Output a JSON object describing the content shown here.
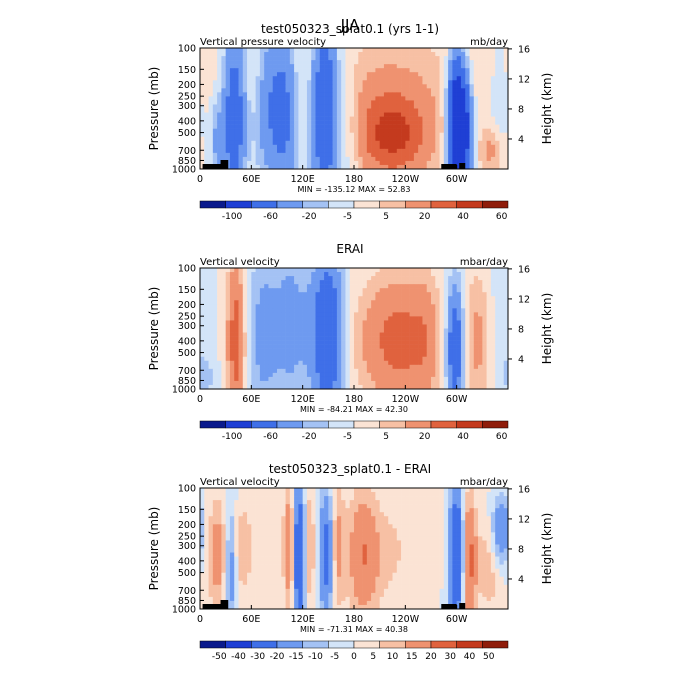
{
  "page_title": "JJA",
  "colors": {
    "palette_blue_red": [
      "#0a1a8c",
      "#1f3fd4",
      "#3f6fe8",
      "#6e9af0",
      "#a4c2f4",
      "#d3e4f8",
      "#fbe3d4",
      "#f7c0a4",
      "#ef9270",
      "#e0623e",
      "#c43a1e",
      "#8f1d0b"
    ],
    "topography": "#000000"
  },
  "chart_data": [
    {
      "type": "heatmap",
      "title": "test050323_splat0.1 (yrs 1-1)",
      "left_label": "Vertical pressure velocity",
      "right_label": "mb/day",
      "ylabel": "Pressure (mb)",
      "y2label": "Height (km)",
      "y_ticks": [
        "100",
        "150",
        "200",
        "250",
        "300",
        "400",
        "500",
        "700",
        "850",
        "1000"
      ],
      "y_tick_values": [
        100,
        150,
        200,
        250,
        300,
        400,
        500,
        700,
        850,
        1000
      ],
      "y2_ticks": [
        "16",
        "12",
        "8",
        "4"
      ],
      "y2_tick_values": [
        16,
        12,
        8,
        4
      ],
      "x_ticks": [
        "0",
        "60E",
        "120E",
        "180",
        "120W",
        "60W"
      ],
      "x_tick_values": [
        0,
        60,
        120,
        180,
        240,
        300
      ],
      "xlim": [
        0,
        360
      ],
      "ylim": [
        1000,
        100
      ],
      "min_max_text": "MIN = -135.12   MAX =  52.83",
      "colorbar_labels": [
        "-100",
        "-60",
        "-20",
        "-5",
        "5",
        "20",
        "40",
        "60"
      ],
      "topography": true
    },
    {
      "type": "heatmap",
      "title": "ERAI",
      "left_label": "Vertical velocity",
      "right_label": "mbar/day",
      "ylabel": "Pressure (mb)",
      "y2label": "Height (km)",
      "y_ticks": [
        "100",
        "150",
        "200",
        "250",
        "300",
        "400",
        "500",
        "700",
        "850",
        "1000"
      ],
      "y_tick_values": [
        100,
        150,
        200,
        250,
        300,
        400,
        500,
        700,
        850,
        1000
      ],
      "y2_ticks": [
        "16",
        "12",
        "8",
        "4"
      ],
      "y2_tick_values": [
        16,
        12,
        8,
        4
      ],
      "x_ticks": [
        "0",
        "60E",
        "120E",
        "180",
        "120W",
        "60W"
      ],
      "x_tick_values": [
        0,
        60,
        120,
        180,
        240,
        300
      ],
      "xlim": [
        0,
        360
      ],
      "ylim": [
        1000,
        100
      ],
      "min_max_text": "MIN = -84.21   MAX =  42.30",
      "colorbar_labels": [
        "-100",
        "-60",
        "-20",
        "-5",
        "5",
        "20",
        "40",
        "60"
      ],
      "topography": false
    },
    {
      "type": "heatmap",
      "title": "test050323_splat0.1 - ERAI",
      "left_label": "Vertical velocity",
      "right_label": "mbar/day",
      "ylabel": "Pressure (mb)",
      "y2label": "Height (km)",
      "y_ticks": [
        "100",
        "150",
        "200",
        "250",
        "300",
        "400",
        "500",
        "700",
        "850",
        "1000"
      ],
      "y_tick_values": [
        100,
        150,
        200,
        250,
        300,
        400,
        500,
        700,
        850,
        1000
      ],
      "y2_ticks": [
        "16",
        "12",
        "8",
        "4"
      ],
      "y2_tick_values": [
        16,
        12,
        8,
        4
      ],
      "x_ticks": [
        "0",
        "60E",
        "120E",
        "180",
        "120W",
        "60W"
      ],
      "x_tick_values": [
        0,
        60,
        120,
        180,
        240,
        300
      ],
      "xlim": [
        0,
        360
      ],
      "ylim": [
        1000,
        100
      ],
      "min_max_text": "MIN = -71.31   MAX =  40.38",
      "colorbar_labels": [
        "-50",
        "-40",
        "-30",
        "-20",
        "-15",
        "-10",
        "-5",
        "0",
        "5",
        "10",
        "15",
        "20",
        "30",
        "40",
        "50"
      ],
      "topography": true
    }
  ]
}
